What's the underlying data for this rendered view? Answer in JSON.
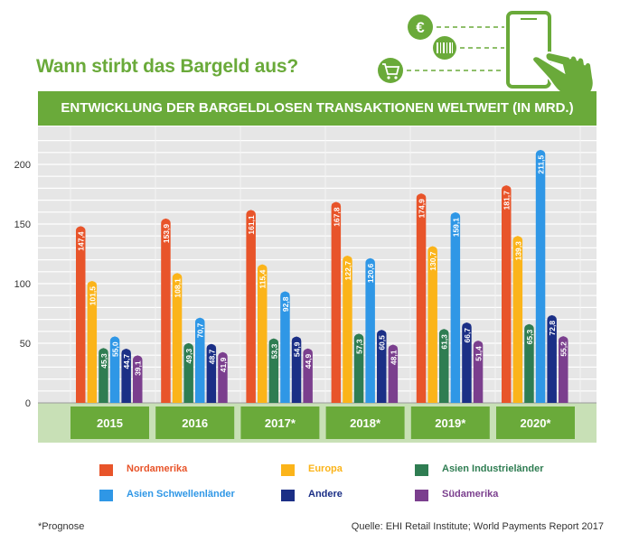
{
  "header": {
    "title": "Wann stirbt das Bargeld aus?",
    "banner": "ENTWICKLUNG DER BARGELDLOSEN TRANSAKTIONEN WELTWEIT (IN MRD.)"
  },
  "decoration": {
    "icons": [
      "euro-icon",
      "barcode-icon",
      "shopping-cart-icon",
      "smartphone-icon",
      "hand-pointer-icon"
    ],
    "euro_symbol": "€"
  },
  "chart_data": {
    "type": "bar",
    "title": "ENTWICKLUNG DER BARGELDLOSEN TRANSAKTIONEN WELTWEIT (IN MRD.)",
    "categories": [
      "2015",
      "2016",
      "2017*",
      "2018*",
      "2019*",
      "2020*"
    ],
    "series": [
      {
        "name": "Nordamerika",
        "color": "#e8542a",
        "values": [
          147.4,
          153.9,
          161.1,
          167.8,
          174.9,
          181.7
        ],
        "labels": [
          "147,4",
          "153,9",
          "161,1",
          "167,8",
          "174,9",
          "181,7"
        ]
      },
      {
        "name": "Europa",
        "color": "#fbb41a",
        "values": [
          101.5,
          108.1,
          115.4,
          122.7,
          130.7,
          139.3
        ],
        "labels": [
          "101,5",
          "108,1",
          "115,4",
          "122,7",
          "130,7",
          "139,3"
        ]
      },
      {
        "name": "Asien Industrieländer",
        "color": "#2f7d52",
        "values": [
          45.3,
          49.3,
          53.3,
          57.3,
          61.3,
          65.3
        ],
        "labels": [
          "45,3",
          "49,3",
          "53,3",
          "57,3",
          "61,3",
          "65,3"
        ]
      },
      {
        "name": "Asien Schwellenländer",
        "color": "#2f97e6",
        "values": [
          55.0,
          70.7,
          92.8,
          120.6,
          159.1,
          211.5
        ],
        "labels": [
          "55,0",
          "70,7",
          "92,8",
          "120,6",
          "159,1",
          "211,5"
        ]
      },
      {
        "name": "Andere",
        "color": "#1b2f86",
        "values": [
          44.7,
          48.7,
          54.9,
          60.5,
          66.7,
          72.8
        ],
        "labels": [
          "44,7",
          "48,7",
          "54,9",
          "60,5",
          "66,7",
          "72,8"
        ]
      },
      {
        "name": "Südamerika",
        "color": "#7b3f8e",
        "values": [
          39.1,
          41.9,
          44.9,
          48.1,
          51.4,
          55.2
        ],
        "labels": [
          "39,1",
          "41,9",
          "44,9",
          "48,1",
          "51,4",
          "55,2"
        ]
      }
    ],
    "yticks": [
      "0",
      "50",
      "100",
      "150",
      "200"
    ],
    "ylim": [
      0,
      230
    ],
    "grid": true,
    "legend_position": "bottom",
    "colors": {
      "accent": "#6aaa3a",
      "category_box": "#6aaa3a",
      "baseline_band": "#c8e0b6",
      "grid": "#c8c8c8",
      "axis_bg": "#e6e6e6"
    }
  },
  "footer": {
    "footnote": "*Prognose",
    "source": "Quelle: EHI Retail Institute; World Payments Report 2017"
  }
}
